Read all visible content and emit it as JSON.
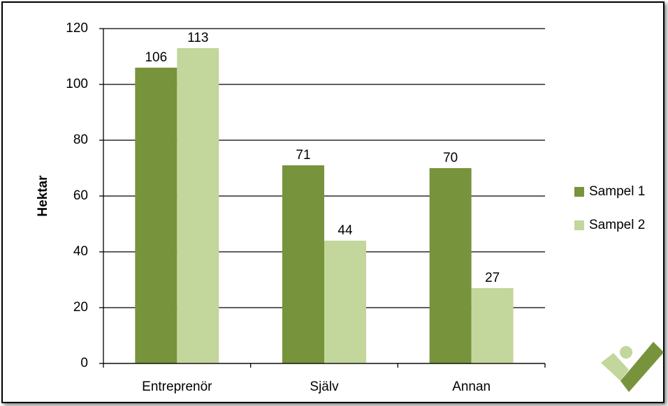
{
  "chart_data": {
    "type": "bar",
    "y_label": "Hektar",
    "categories": [
      "Entreprenör",
      "Själv",
      "Annan"
    ],
    "series": [
      {
        "name": "Sampel 1",
        "color": "#77933c",
        "values": [
          106,
          71,
          70
        ]
      },
      {
        "name": "Sampel 2",
        "color": "#c3d69b",
        "values": [
          113,
          44,
          27
        ]
      }
    ],
    "ylim": [
      0,
      120
    ],
    "yticks": [
      0,
      20,
      40,
      60,
      80,
      100,
      120
    ],
    "grid": true,
    "legend": "right"
  }
}
